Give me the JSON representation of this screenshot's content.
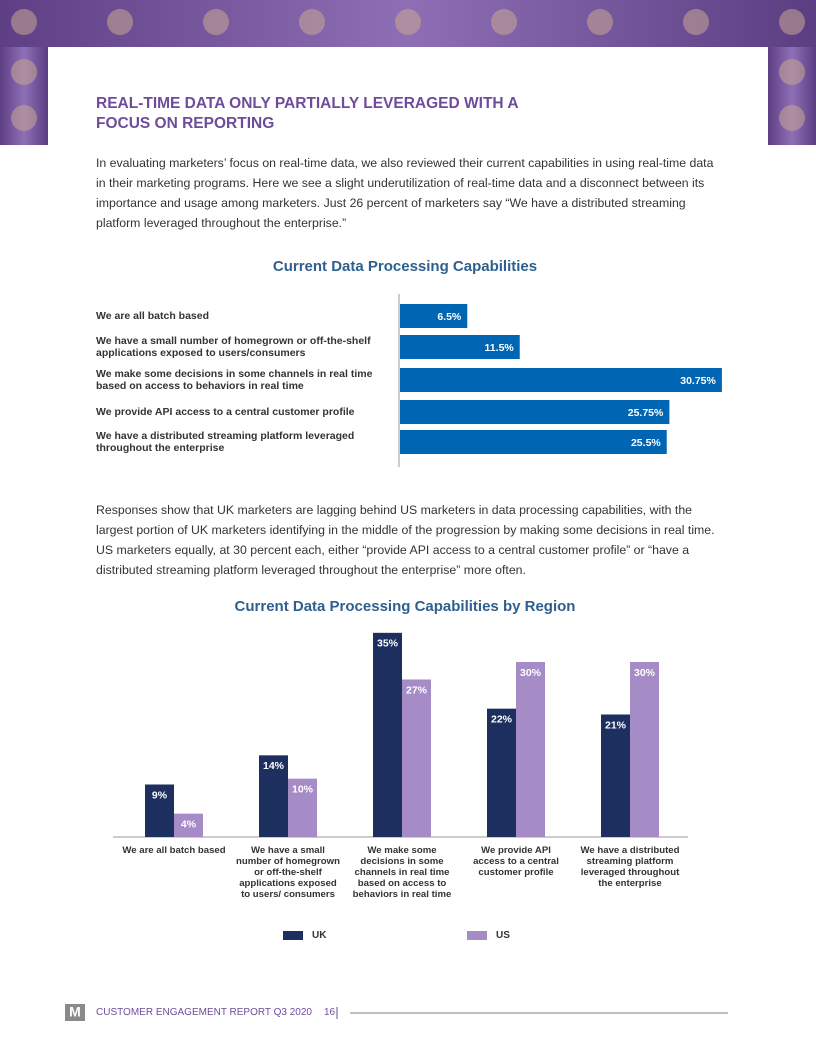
{
  "header": {
    "title": "REAL-TIME DATA ONLY PARTIALLY LEVERAGED WITH A FOCUS ON REPORTING"
  },
  "paragraphs": [
    "In evaluating marketers’ focus on real-time data, we also reviewed their current capabilities in using real-time data in their marketing programs. Here we see a slight underutilization of real-time data and a disconnect between its importance and usage among marketers. Just 26 percent of marketers say “We have a distributed streaming platform leveraged throughout the enterprise.”",
    "Responses show that UK marketers are lagging behind US marketers in data processing capabilities, with the largest portion of UK marketers identifying in the middle of the progression by making some decisions in real time. US marketers equally, at 30 percent each, either “provide API access to a central customer profile” or “have a distributed streaming platform leveraged throughout the enterprise” more often."
  ],
  "chart_data": [
    {
      "type": "barh",
      "title": "Current Data Processing Capabilities",
      "categories": [
        "We are all batch based",
        "We have a small number of homegrown or off-the-shelf applications exposed to users/consumers",
        "We make some decisions in some channels in real time based on access to behaviors in real time",
        "We provide API access to a central customer profile",
        "We have a distributed streaming platform leveraged throughout the enterprise"
      ],
      "values": [
        6.5,
        11.5,
        30.75,
        25.75,
        25.5
      ],
      "value_labels": [
        "6.5%",
        "11.5%",
        "30.75%",
        "25.75%",
        "25.5%"
      ],
      "color": "#0066b3",
      "xlim": [
        0,
        31
      ]
    },
    {
      "type": "bar",
      "title": "Current Data Processing Capabilities by Region",
      "categories": [
        "We are all batch based",
        "We have a small number of homegrown or off-the-shelf applications exposed to users/ consumers",
        "We make some decisions in some channels in real time based on access to behaviors in real time",
        "We provide API access to a central customer profile",
        "We have a distributed streaming platform leveraged throughout the enterprise"
      ],
      "series": [
        {
          "name": "UK",
          "color": "#1c2f5e",
          "values": [
            9,
            14,
            35,
            22,
            21
          ],
          "value_labels": [
            "9%",
            "14%",
            "35%",
            "22%",
            "21%"
          ]
        },
        {
          "name": "US",
          "color": "#a58cc6",
          "values": [
            4,
            10,
            27,
            30,
            30
          ],
          "value_labels": [
            "4%",
            "10%",
            "27%",
            "30%",
            "30%"
          ]
        }
      ],
      "ylim": [
        0,
        36
      ]
    }
  ],
  "footer": {
    "logo": "M",
    "text": "CUSTOMER ENGAGEMENT REPORT Q3 2020",
    "page": "16"
  }
}
